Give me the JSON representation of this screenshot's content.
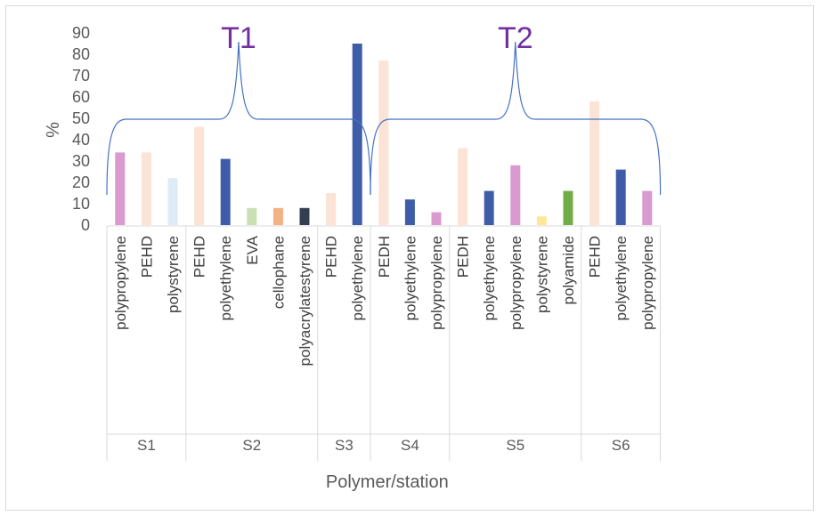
{
  "chart_data": {
    "type": "bar",
    "title": "",
    "xlabel": "Polymer/station",
    "ylabel": "%",
    "ylim": [
      0,
      90
    ],
    "yticks": [
      "0",
      "10",
      "20",
      "30",
      "40",
      "50",
      "60",
      "70",
      "80",
      "90"
    ],
    "grid": false,
    "legend": "none",
    "annotations": [
      "T1",
      "T2"
    ],
    "groups": [
      {
        "name": "S1",
        "bars": [
          {
            "label": "polypropylene",
            "value": 34,
            "color": "#d99ad0"
          },
          {
            "label": "PEHD",
            "value": 34,
            "color": "#fbe3d6"
          },
          {
            "label": "polystyrene",
            "value": 22,
            "color": "#ddebf7"
          }
        ]
      },
      {
        "name": "S2",
        "bars": [
          {
            "label": "PEHD",
            "value": 46,
            "color": "#fbe3d6"
          },
          {
            "label": "polyethylene",
            "value": 31,
            "color": "#3e5ca8"
          },
          {
            "label": "EVA",
            "value": 8,
            "color": "#c9e0b4"
          },
          {
            "label": "cellophane",
            "value": 8,
            "color": "#f4b183"
          },
          {
            "label": "polyacrylatestyrene",
            "value": 8,
            "color": "#333f50"
          }
        ]
      },
      {
        "name": "S3",
        "bars": [
          {
            "label": "PEHD",
            "value": 15,
            "color": "#fbe3d6"
          },
          {
            "label": "polyethylene",
            "value": 85,
            "color": "#3e5ca8"
          }
        ]
      },
      {
        "name": "S4",
        "bars": [
          {
            "label": "PEDH",
            "value": 77,
            "color": "#fbe3d6"
          },
          {
            "label": "polyethylene",
            "value": 12,
            "color": "#3e5ca8"
          },
          {
            "label": "polypropylene",
            "value": 6,
            "color": "#d99ad0"
          }
        ]
      },
      {
        "name": "S5",
        "bars": [
          {
            "label": "PEDH",
            "value": 36,
            "color": "#fbe3d6"
          },
          {
            "label": "polyethylene",
            "value": 16,
            "color": "#3e5ca8"
          },
          {
            "label": "polypropylene",
            "value": 28,
            "color": "#d99ad0"
          },
          {
            "label": "polystyrene",
            "value": 4,
            "color": "#ffe699"
          },
          {
            "label": "polyamide",
            "value": 16,
            "color": "#70ad47"
          }
        ]
      },
      {
        "name": "S6",
        "bars": [
          {
            "label": "PEHD",
            "value": 58,
            "color": "#fbe3d6"
          },
          {
            "label": "polyethylene",
            "value": 26,
            "color": "#3e5ca8"
          },
          {
            "label": "polypropylene",
            "value": 16,
            "color": "#d99ad0"
          }
        ]
      }
    ],
    "brace_color": "#4472c4",
    "annotation_color": "#7030a0"
  }
}
